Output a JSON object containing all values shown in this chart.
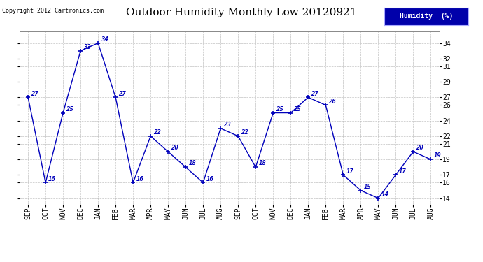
{
  "title": "Outdoor Humidity Monthly Low 20120921",
  "ylabel": "Humidity (%)",
  "copyright_text": "Copyright 2012 Cartronics.com",
  "legend_label": "Humidity  (%)",
  "categories": [
    "SEP",
    "OCT",
    "NOV",
    "DEC",
    "JAN",
    "FEB",
    "MAR",
    "APR",
    "MAY",
    "JUN",
    "JUL",
    "AUG",
    "SEP",
    "OCT",
    "NOV",
    "DEC",
    "JAN",
    "FEB",
    "MAR",
    "APR",
    "MAY",
    "JUN",
    "JUL",
    "AUG"
  ],
  "values": [
    27,
    16,
    25,
    33,
    34,
    27,
    16,
    22,
    20,
    18,
    16,
    23,
    22,
    18,
    25,
    25,
    27,
    26,
    17,
    15,
    14,
    17,
    20,
    19
  ],
  "yticks": [
    14,
    16,
    17,
    19,
    21,
    22,
    24,
    26,
    27,
    29,
    31,
    32,
    34
  ],
  "line_color": "#0000bb",
  "marker_color": "#0000bb",
  "bg_color": "#ffffff",
  "plot_bg_color": "#ffffff",
  "grid_color": "#bbbbbb",
  "title_fontsize": 11,
  "data_fontsize": 6.5,
  "tick_fontsize": 7,
  "legend_bg": "#0000aa",
  "legend_fg": "#ffffff"
}
